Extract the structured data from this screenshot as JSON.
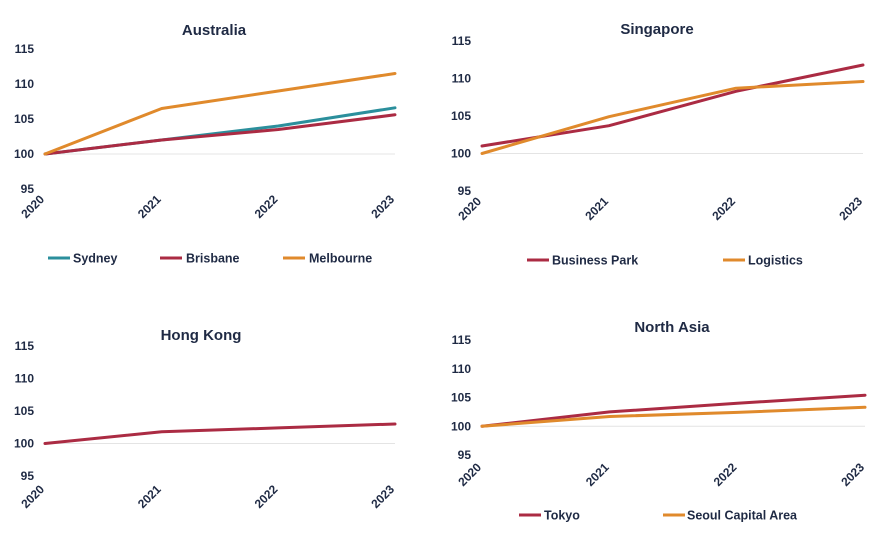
{
  "colors": {
    "teal": "#2b8f9c",
    "crimson": "#ab2b43",
    "orange": "#e08a2c"
  },
  "chart_data": [
    {
      "type": "line",
      "title": "Australia",
      "x": [
        "2020",
        "2021",
        "2022",
        "2023"
      ],
      "yticks": [
        "95",
        "100",
        "105",
        "110",
        "115"
      ],
      "ylim": [
        95,
        115
      ],
      "grid": "baseline at 100",
      "legend_position": "bottom",
      "series": [
        {
          "name": "Sydney",
          "color": "#2b8f9c",
          "values": [
            100,
            102,
            104,
            106.6
          ]
        },
        {
          "name": "Brisbane",
          "color": "#ab2b43",
          "values": [
            100,
            102,
            103.5,
            105.6
          ]
        },
        {
          "name": "Melbourne",
          "color": "#e08a2c",
          "values": [
            100,
            106.5,
            109,
            111.5
          ]
        }
      ]
    },
    {
      "type": "line",
      "title": "Singapore",
      "x": [
        "2020",
        "2021",
        "2022",
        "2023"
      ],
      "yticks": [
        "95",
        "100",
        "105",
        "110",
        "115"
      ],
      "ylim": [
        95,
        115
      ],
      "grid": "baseline at 100",
      "legend_position": "bottom",
      "series": [
        {
          "name": "Business Park",
          "color": "#ab2b43",
          "values": [
            101,
            103.7,
            108.3,
            111.8
          ]
        },
        {
          "name": "Logistics",
          "color": "#e08a2c",
          "values": [
            100,
            104.9,
            108.7,
            109.6
          ]
        }
      ]
    },
    {
      "type": "line",
      "title": "Hong Kong",
      "x": [
        "2020",
        "2021",
        "2022",
        "2023"
      ],
      "yticks": [
        "95",
        "100",
        "105",
        "110",
        "115"
      ],
      "ylim": [
        95,
        115
      ],
      "grid": "baseline at 100",
      "legend_position": "none",
      "series": [
        {
          "color": "#ab2b43",
          "values": [
            100,
            101.8,
            102.4,
            103
          ]
        }
      ]
    },
    {
      "type": "line",
      "title": "North Asia",
      "x": [
        "2020",
        "2021",
        "2022",
        "2023"
      ],
      "yticks": [
        "95",
        "100",
        "105",
        "110",
        "115"
      ],
      "ylim": [
        95,
        115
      ],
      "grid": "baseline at 100",
      "legend_position": "bottom",
      "series": [
        {
          "name": "Tokyo",
          "color": "#ab2b43",
          "values": [
            100,
            102.5,
            104,
            105.4
          ]
        },
        {
          "name": "Seoul Capital Area",
          "color": "#e08a2c",
          "values": [
            100,
            101.7,
            102.4,
            103.3
          ]
        }
      ]
    }
  ]
}
